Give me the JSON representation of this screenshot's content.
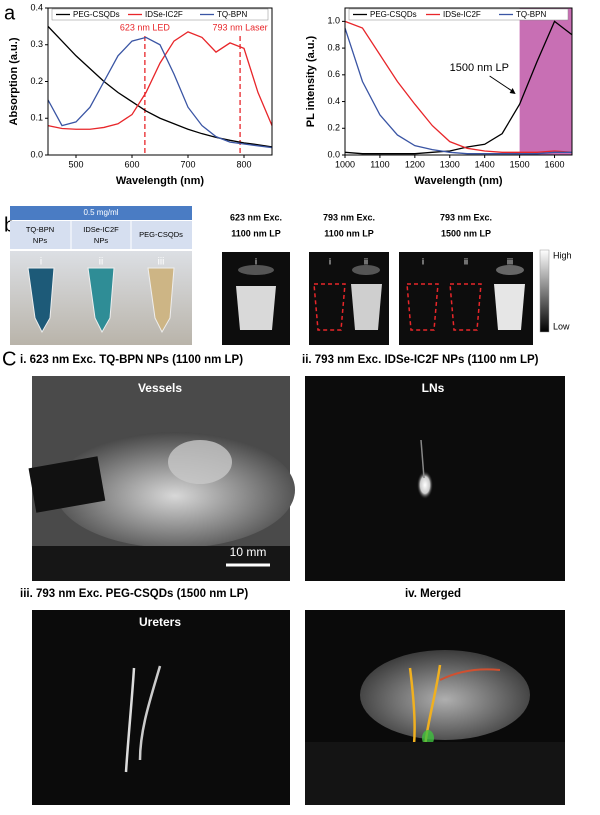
{
  "panel_labels": [
    "a",
    "b",
    "C"
  ],
  "chart_data": [
    {
      "type": "line",
      "xlabel": "Wavelength (nm)",
      "ylabel": "Absorption (a.u.)",
      "x": [
        450,
        475,
        500,
        525,
        550,
        575,
        600,
        625,
        650,
        675,
        700,
        725,
        750,
        775,
        800,
        825,
        850
      ],
      "xlim": [
        450,
        850
      ],
      "ylim": [
        0,
        0.4
      ],
      "xticks": [
        500,
        600,
        700,
        800
      ],
      "yticks": [
        {
          "value": 0,
          "label": "0.0"
        },
        0.1,
        0.2,
        0.3,
        0.4
      ],
      "legend": "top",
      "series": [
        {
          "name": "PEG-CSQDs",
          "color": "#000000",
          "values": [
            0.35,
            0.31,
            0.27,
            0.235,
            0.2,
            0.17,
            0.145,
            0.12,
            0.1,
            0.085,
            0.07,
            0.058,
            0.048,
            0.04,
            0.033,
            0.028,
            0.022
          ]
        },
        {
          "name": "IDSe-IC2F",
          "color": "#e8262a",
          "values": [
            0.08,
            0.072,
            0.07,
            0.07,
            0.075,
            0.085,
            0.11,
            0.17,
            0.25,
            0.31,
            0.335,
            0.32,
            0.28,
            0.305,
            0.29,
            0.17,
            0.08
          ]
        },
        {
          "name": "TQ-BPN",
          "color": "#3a55a4",
          "values": [
            0.15,
            0.08,
            0.09,
            0.13,
            0.2,
            0.27,
            0.31,
            0.32,
            0.3,
            0.22,
            0.13,
            0.08,
            0.05,
            0.035,
            0.03,
            0.025,
            0.02
          ]
        }
      ],
      "vlines": [
        {
          "value": 623,
          "label": "623 nm LED"
        },
        {
          "value": 793,
          "label": "793 nm Laser"
        }
      ],
      "vline_color": "#e8262a"
    },
    {
      "type": "line",
      "xlabel": "Wavelength (nm)",
      "ylabel": "PL intensity (a.u.)",
      "x": [
        1000,
        1050,
        1100,
        1150,
        1200,
        1250,
        1300,
        1350,
        1400,
        1450,
        1500,
        1550,
        1600,
        1650
      ],
      "xlim": [
        1000,
        1650
      ],
      "ylim": [
        0,
        1.1
      ],
      "xticks": [
        1000,
        1100,
        1200,
        1300,
        1400,
        1500,
        1600
      ],
      "yticks": [
        {
          "value": 0,
          "label": "0.0"
        },
        0.2,
        0.4,
        0.6,
        0.8,
        {
          "value": 1,
          "label": "1.0"
        }
      ],
      "legend": "top",
      "series": [
        {
          "name": "PEG-CSQDs",
          "color": "#000000",
          "values": [
            0.02,
            0.01,
            0.01,
            0.01,
            0.01,
            0.02,
            0.03,
            0.06,
            0.08,
            0.16,
            0.38,
            0.7,
            1.0,
            0.9
          ]
        },
        {
          "name": "IDSe-IC2F",
          "color": "#e8262a",
          "values": [
            1.0,
            0.95,
            0.75,
            0.55,
            0.38,
            0.22,
            0.1,
            0.05,
            0.03,
            0.02,
            0.02,
            0.02,
            0.03,
            0.02
          ]
        },
        {
          "name": "TQ-BPN",
          "color": "#3a55a4",
          "values": [
            0.95,
            0.55,
            0.3,
            0.15,
            0.07,
            0.04,
            0.02,
            0.01,
            0.01,
            0.01,
            0.01,
            0.01,
            0.02,
            0.02
          ]
        }
      ],
      "highlight": [
        1500,
        1650
      ],
      "highlight_color": "#c86fb4",
      "annotation": "1500 nm LP"
    }
  ],
  "panel_b": {
    "table": {
      "header": "0.5 mg/ml",
      "columns": [
        [
          "TQ-BPN",
          "NPs"
        ],
        [
          "IDSe-IC2F",
          "NPs"
        ],
        [
          "PEG-CSQDs"
        ]
      ]
    },
    "tubes": [
      "i",
      "ii",
      "iii"
    ],
    "nir_images": [
      {
        "label": [
          "623 nm Exc.",
          "1100 nm LP"
        ],
        "samples": [
          "i"
        ]
      },
      {
        "label": [
          "793 nm Exc.",
          "1100 nm LP"
        ],
        "samples": [
          "i",
          "ii"
        ]
      },
      {
        "label": [
          "793 nm Exc.",
          "1500 nm LP"
        ],
        "samples": [
          "i",
          "ii",
          "iii"
        ]
      }
    ],
    "colorbar": {
      "high": "High",
      "low": "Low"
    }
  },
  "panel_c": {
    "images": [
      {
        "title": "i. 623 nm Exc. TQ-BPN NPs (1100 nm LP)",
        "label": "Vessels",
        "scale": "10 mm"
      },
      {
        "title": "ii. 793 nm Exc. IDSe-IC2F NPs (1100 nm LP)",
        "label": "LNs"
      },
      {
        "title": "iii. 793 nm Exc. PEG-CSQDs (1500 nm LP)",
        "label": "Ureters"
      },
      {
        "title": "iv. Merged"
      }
    ]
  }
}
